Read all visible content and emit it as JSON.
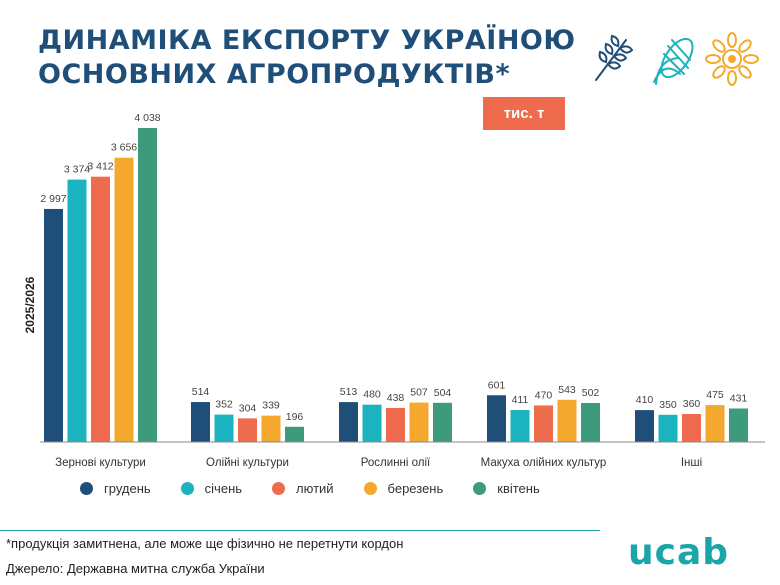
{
  "title": "ДИНАМІКА ЕКСПОРТУ УКРАЇНОЮ ОСНОВНИХ АГРОПРОДУКТІВ*",
  "unit": "тис. т",
  "footnote": "*продукція замитнена, але може ще фізично не перетнути кордон",
  "source": "Джерело: Державна митна служба України",
  "logo": "ucab",
  "icons": [
    "wheat-icon",
    "corn-icon",
    "sunflower-icon"
  ],
  "chart_data": {
    "type": "bar",
    "ylabel": "2025/2026",
    "categories": [
      "Зернові культури",
      "Олійні культури",
      "Рослинні олії",
      "Макуха олійних культур",
      "Інші"
    ],
    "series": [
      {
        "name": "грудень",
        "color": "#1f4e79",
        "values": [
          2997,
          514,
          513,
          601,
          410
        ],
        "labels": [
          "2 997",
          "514",
          "513",
          "601",
          "410"
        ]
      },
      {
        "name": "січень",
        "color": "#1ab3be",
        "values": [
          3374,
          352,
          480,
          411,
          350
        ],
        "labels": [
          "3 374",
          "352",
          "480",
          "411",
          "350"
        ]
      },
      {
        "name": "лютий",
        "color": "#ee6b4d",
        "values": [
          3412,
          304,
          438,
          470,
          360
        ],
        "labels": [
          "3 412",
          "304",
          "438",
          "470",
          "360"
        ]
      },
      {
        "name": "березень",
        "color": "#f4a92e",
        "values": [
          3656,
          339,
          507,
          543,
          475
        ],
        "labels": [
          "3 656",
          "339",
          "507",
          "543",
          "475"
        ]
      },
      {
        "name": "квітень",
        "color": "#3e9a7c",
        "values": [
          4038,
          196,
          504,
          502,
          431
        ],
        "labels": [
          "4 038",
          "196",
          "504",
          "502",
          "431"
        ]
      }
    ],
    "ylim": [
      0,
      4038
    ],
    "grid": false,
    "legend": "bottom"
  }
}
